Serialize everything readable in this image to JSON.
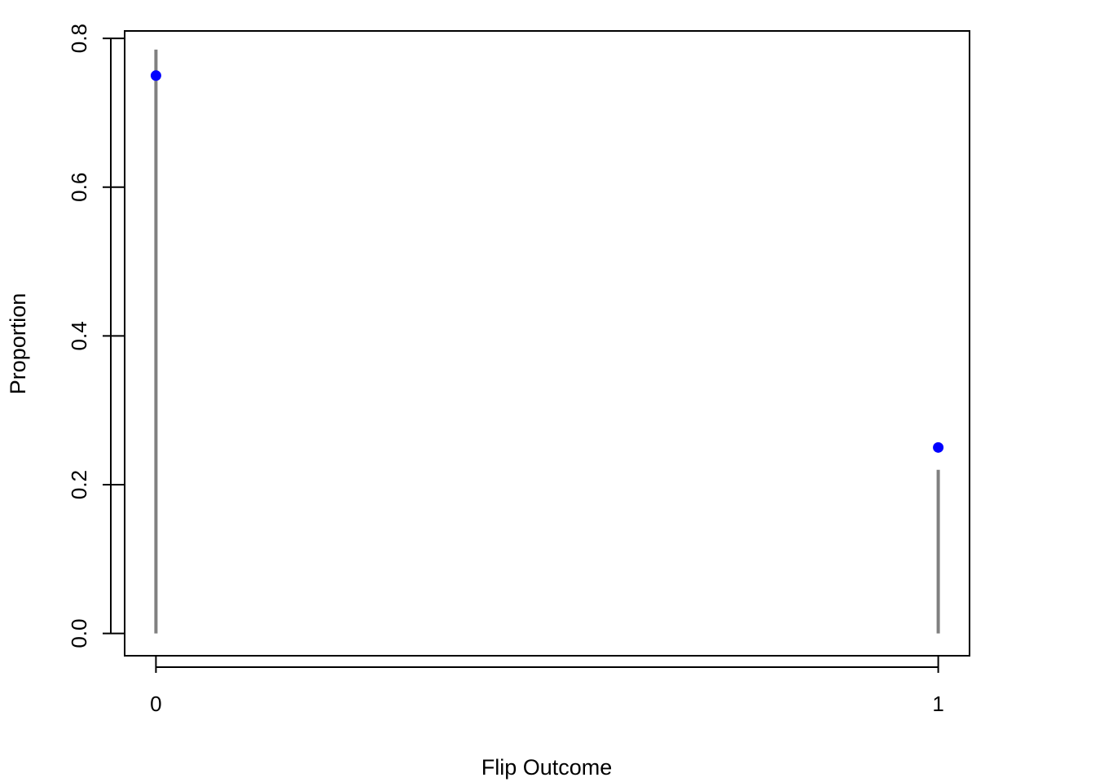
{
  "chart_data": {
    "type": "lollipop",
    "title": "",
    "xlabel": "Flip Outcome",
    "ylabel": "Proportion",
    "x_ticks": [
      "0",
      "1"
    ],
    "y_ticks": [
      "0.0",
      "0.2",
      "0.4",
      "0.6",
      "0.8"
    ],
    "xlim": [
      -0.04,
      1.04
    ],
    "ylim": [
      -0.03,
      0.81
    ],
    "grid": false,
    "series": [
      {
        "style": "line",
        "color": "#808080",
        "points": [
          {
            "x": 0,
            "y_from": 0,
            "y_to": 0.785
          },
          {
            "x": 1,
            "y_from": 0,
            "y_to": 0.22
          }
        ]
      },
      {
        "style": "point",
        "color": "#0000ff",
        "points": [
          {
            "x": 0,
            "y": 0.75
          },
          {
            "x": 1,
            "y": 0.25
          }
        ]
      }
    ]
  }
}
